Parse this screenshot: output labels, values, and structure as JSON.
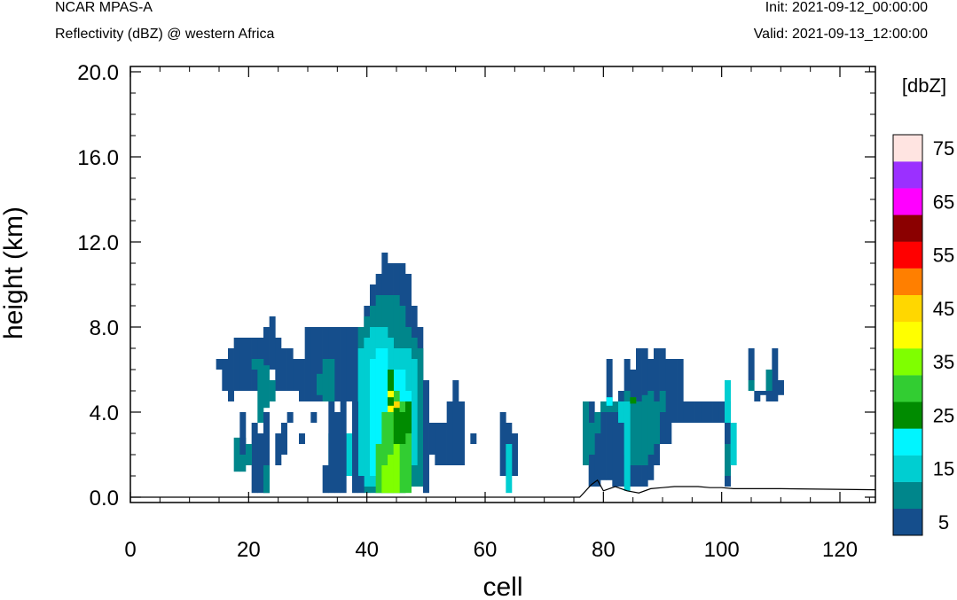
{
  "header": {
    "model": "NCAR MPAS-A",
    "subtitle": "Reflectivity (dBZ) @ western Africa",
    "init": "Init: 2021-09-12_00:00:00",
    "valid": "Valid: 2021-09-13_12:00:00"
  },
  "chart_data": {
    "type": "heatmap",
    "xlabel": "cell",
    "ylabel": "height (km)",
    "xlim": [
      0,
      126
    ],
    "ylim": [
      -0.25,
      20.25
    ],
    "x_ticks": [
      "0",
      "20",
      "40",
      "60",
      "80",
      "100",
      "120"
    ],
    "y_ticks": [
      "0.0",
      "4.0",
      "8.0",
      "12.0",
      "16.0",
      "20.0"
    ],
    "colorbar": {
      "unit_label": "[dbZ]",
      "tick_labels": [
        "5",
        "15",
        "25",
        "35",
        "45",
        "55",
        "65",
        "75"
      ],
      "colors": [
        "#154e8c",
        "#00868b",
        "#00ced1",
        "#00f5ff",
        "#008b00",
        "#32cd32",
        "#7fff00",
        "#ffff00",
        "#ffd700",
        "#ff7f00",
        "#ff0000",
        "#8b0000",
        "#ff00ff",
        "#9b30ff",
        "#ffe4e1"
      ]
    },
    "terrain": [
      [
        0,
        0
      ],
      [
        76,
        0
      ],
      [
        78,
        0.6
      ],
      [
        79,
        0.8
      ],
      [
        80,
        0.3
      ],
      [
        82,
        0.5
      ],
      [
        84,
        0.3
      ],
      [
        86,
        0.2
      ],
      [
        88,
        0.4
      ],
      [
        90,
        0.45
      ],
      [
        92,
        0.5
      ],
      [
        94,
        0.5
      ],
      [
        96,
        0.5
      ],
      [
        98,
        0.45
      ],
      [
        100,
        0.45
      ],
      [
        102,
        0.4
      ],
      [
        110,
        0.4
      ],
      [
        126,
        0.35
      ]
    ],
    "cells": [
      [
        15,
        6,
        6.5,
        0
      ],
      [
        16,
        5,
        6.5,
        0
      ],
      [
        17,
        5,
        7,
        0
      ],
      [
        18,
        5,
        7.5,
        0
      ],
      [
        19,
        5,
        7.5,
        0
      ],
      [
        20,
        5,
        7.5,
        0
      ],
      [
        21,
        5,
        7.5,
        0
      ],
      [
        22,
        5,
        7.5,
        0
      ],
      [
        23,
        6,
        8,
        0
      ],
      [
        24,
        6,
        8.5,
        0
      ],
      [
        25,
        5,
        7.5,
        0
      ],
      [
        26,
        5,
        7,
        0
      ],
      [
        27,
        5,
        7,
        0
      ],
      [
        28,
        5,
        6.5,
        0
      ],
      [
        29,
        4.5,
        6.5,
        0
      ],
      [
        30,
        4.5,
        8,
        0
      ],
      [
        31,
        4.5,
        8,
        0
      ],
      [
        32,
        4.5,
        8,
        0
      ],
      [
        33,
        4.5,
        8,
        0
      ],
      [
        34,
        4.5,
        8,
        0
      ],
      [
        35,
        4.5,
        8,
        0
      ],
      [
        36,
        4.5,
        8,
        0
      ],
      [
        37,
        4.5,
        8,
        0
      ],
      [
        38,
        4.5,
        8,
        0
      ],
      [
        39,
        4.5,
        8,
        0
      ],
      [
        40,
        4.5,
        9,
        0
      ],
      [
        41,
        4.5,
        10,
        0
      ],
      [
        42,
        5,
        10.5,
        0
      ],
      [
        43,
        5,
        11.5,
        0
      ],
      [
        44,
        5,
        11,
        0
      ],
      [
        45,
        5,
        11,
        0
      ],
      [
        46,
        5,
        11,
        0
      ],
      [
        47,
        5,
        10.5,
        0
      ],
      [
        48,
        5,
        9,
        0
      ],
      [
        49,
        5,
        8,
        0
      ],
      [
        18,
        1.2,
        2.8,
        1
      ],
      [
        19,
        1.2,
        2.8,
        1
      ],
      [
        21,
        6,
        6.5,
        1
      ],
      [
        22,
        3.5,
        6.5,
        1
      ],
      [
        23,
        4.2,
        6.2,
        1
      ],
      [
        24,
        4.5,
        5.5,
        1
      ],
      [
        32,
        4.8,
        5.8,
        1
      ],
      [
        33,
        4.5,
        6.5,
        1
      ],
      [
        34,
        4.5,
        6.5,
        1
      ],
      [
        39,
        2,
        8,
        1
      ],
      [
        40,
        0.2,
        8.5,
        1
      ],
      [
        41,
        0.2,
        9,
        1
      ],
      [
        42,
        0.2,
        9.5,
        1
      ],
      [
        43,
        0.2,
        9.5,
        1
      ],
      [
        44,
        0.2,
        9.5,
        1
      ],
      [
        45,
        0.2,
        9.5,
        1
      ],
      [
        46,
        0.2,
        9,
        1
      ],
      [
        47,
        0.5,
        8,
        1
      ],
      [
        48,
        0.5,
        7.5,
        1
      ],
      [
        49,
        0.5,
        7,
        1
      ],
      [
        34,
        1,
        3,
        2
      ],
      [
        35,
        1,
        3,
        2
      ],
      [
        36,
        1,
        3,
        2
      ],
      [
        37,
        1,
        3,
        2
      ],
      [
        38,
        0.5,
        3,
        2
      ],
      [
        39,
        0.5,
        7,
        2
      ],
      [
        40,
        0.5,
        7.5,
        2
      ],
      [
        41,
        0.5,
        8,
        2
      ],
      [
        42,
        0.5,
        8,
        2
      ],
      [
        43,
        0.5,
        8,
        2
      ],
      [
        44,
        0.5,
        7.5,
        2
      ],
      [
        45,
        0.5,
        7,
        2
      ],
      [
        46,
        1,
        7,
        2
      ],
      [
        47,
        1.5,
        7,
        2
      ],
      [
        48,
        1.5,
        6.5,
        2
      ],
      [
        41,
        1,
        6.5,
        3
      ],
      [
        42,
        1.5,
        7,
        3
      ],
      [
        43,
        2,
        7,
        3
      ],
      [
        44,
        2,
        6,
        3
      ],
      [
        45,
        2,
        6,
        3
      ],
      [
        46,
        2.5,
        6,
        3
      ],
      [
        47,
        3,
        5,
        3
      ],
      [
        42,
        0.2,
        2.5,
        5
      ],
      [
        43,
        0.2,
        4,
        5
      ],
      [
        44,
        0.2,
        4.5,
        5
      ],
      [
        45,
        0.2,
        5,
        5
      ],
      [
        46,
        0.2,
        4.5,
        5
      ],
      [
        47,
        0.2,
        3.5,
        5
      ],
      [
        43,
        0.2,
        1.5,
        6
      ],
      [
        44,
        0.2,
        2,
        6
      ],
      [
        45,
        0.2,
        4,
        6
      ],
      [
        44,
        4,
        5.5,
        7
      ],
      [
        45,
        4,
        4.5,
        8
      ],
      [
        44,
        5,
        6,
        4
      ],
      [
        45,
        2.5,
        4.2,
        4
      ],
      [
        46,
        2.5,
        4,
        4
      ],
      [
        47,
        3,
        4.5,
        4
      ],
      [
        44,
        4.3,
        4.7,
        4
      ],
      [
        17,
        4.5,
        5,
        0
      ],
      [
        19,
        2,
        4,
        0
      ],
      [
        21,
        0.2,
        3.5,
        0
      ],
      [
        22,
        0.2,
        3,
        0
      ],
      [
        23,
        0.2,
        4,
        0
      ],
      [
        25,
        1.5,
        3,
        0
      ],
      [
        26,
        2,
        3.5,
        0
      ],
      [
        27,
        3.5,
        4,
        0
      ],
      [
        29,
        2.5,
        3,
        0
      ],
      [
        31,
        3.5,
        4,
        0
      ],
      [
        33,
        0.2,
        1.5,
        0
      ],
      [
        34,
        0.2,
        4.5,
        0
      ],
      [
        35,
        0.2,
        4,
        0
      ],
      [
        36,
        0.2,
        4.5,
        0
      ],
      [
        38,
        0.2,
        4.5,
        0
      ],
      [
        39,
        0.2,
        1,
        0
      ],
      [
        50,
        0.2,
        5.5,
        0
      ],
      [
        51,
        2,
        3.5,
        0
      ],
      [
        52,
        1.5,
        3.5,
        0
      ],
      [
        53,
        1.5,
        3.5,
        0
      ],
      [
        54,
        1.5,
        4.5,
        0
      ],
      [
        55,
        1.5,
        5.5,
        0
      ],
      [
        56,
        1.5,
        4.5,
        0
      ],
      [
        58,
        2.5,
        3,
        0
      ],
      [
        63,
        1,
        4,
        0
      ],
      [
        64,
        1,
        3.5,
        0
      ],
      [
        65,
        1,
        3,
        0
      ],
      [
        20,
        1.5,
        2.5,
        1
      ],
      [
        23,
        0.2,
        1.5,
        1
      ],
      [
        64,
        0.2,
        2.5,
        2
      ],
      [
        78,
        0.5,
        4.5,
        0
      ],
      [
        79,
        0.5,
        3.5,
        0
      ],
      [
        80,
        0.8,
        4,
        0
      ],
      [
        81,
        0.8,
        6.5,
        0
      ],
      [
        82,
        0.5,
        4.5,
        0
      ],
      [
        83,
        0.5,
        5,
        0
      ],
      [
        84,
        0.5,
        6.5,
        0
      ],
      [
        85,
        0.5,
        6,
        0
      ],
      [
        86,
        0.5,
        7,
        0
      ],
      [
        87,
        0.5,
        7,
        0
      ],
      [
        88,
        0.8,
        6.5,
        0
      ],
      [
        89,
        1.5,
        7,
        0
      ],
      [
        90,
        2.5,
        7,
        0
      ],
      [
        91,
        2.5,
        6.5,
        0
      ],
      [
        92,
        3.5,
        6.5,
        0
      ],
      [
        93,
        3.5,
        6.5,
        0
      ],
      [
        94,
        3.5,
        4.5,
        0
      ],
      [
        95,
        3.5,
        4.5,
        0
      ],
      [
        96,
        3.5,
        4.5,
        0
      ],
      [
        97,
        3.5,
        4.5,
        0
      ],
      [
        98,
        3.5,
        4.5,
        0
      ],
      [
        99,
        3.5,
        4.5,
        0
      ],
      [
        100,
        3.5,
        4.5,
        0
      ],
      [
        101,
        0.5,
        4.5,
        0
      ],
      [
        105,
        5.5,
        7,
        0
      ],
      [
        106,
        4.5,
        5,
        0
      ],
      [
        107,
        4.8,
        5,
        0
      ],
      [
        108,
        4.5,
        6,
        0
      ],
      [
        109,
        4.5,
        7,
        0
      ],
      [
        110,
        4.8,
        5.5,
        0
      ],
      [
        77,
        1.5,
        4.5,
        1
      ],
      [
        78,
        2,
        3.5,
        1
      ],
      [
        79,
        3,
        4,
        1
      ],
      [
        80,
        4,
        4.5,
        1
      ],
      [
        81,
        4,
        4.5,
        1
      ],
      [
        82,
        4,
        4.5,
        1
      ],
      [
        83,
        3.5,
        4.5,
        1
      ],
      [
        84,
        2,
        5,
        1
      ],
      [
        85,
        1.5,
        4.7,
        1
      ],
      [
        86,
        1.5,
        4.5,
        1
      ],
      [
        87,
        1.5,
        4.8,
        1
      ],
      [
        88,
        2,
        5,
        1
      ],
      [
        89,
        2.5,
        4.5,
        1
      ],
      [
        90,
        4,
        5,
        1
      ],
      [
        101,
        1,
        2.5,
        1
      ],
      [
        105,
        5,
        5.5,
        1
      ],
      [
        108,
        5,
        6,
        1
      ],
      [
        83,
        3.5,
        4.5,
        2
      ],
      [
        84,
        0.3,
        4.5,
        2
      ],
      [
        101,
        3.5,
        5.5,
        2
      ],
      [
        102,
        1.5,
        3.5,
        2
      ],
      [
        81,
        4.3,
        4.7,
        3
      ],
      [
        85,
        4.4,
        4.7,
        4
      ]
    ]
  }
}
